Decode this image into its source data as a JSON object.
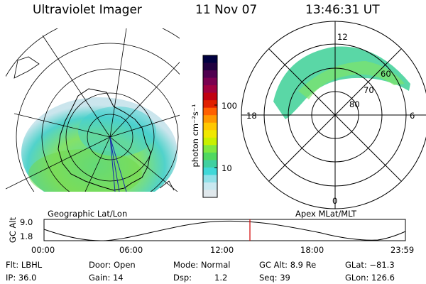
{
  "header": {
    "instrument": "Ultraviolet Imager",
    "date": "11 Nov 07",
    "time": "13:46:31 UT"
  },
  "colorbar": {
    "unit_label": "photon cm⁻²s⁻¹",
    "ticks": [
      "100",
      "10"
    ],
    "colors": [
      "#000040",
      "#200040",
      "#500050",
      "#7a0050",
      "#a00040",
      "#c00010",
      "#e02000",
      "#ff6000",
      "#ff9800",
      "#ffc800",
      "#f0e800",
      "#c8f000",
      "#80e840",
      "#50d860",
      "#40d0a0",
      "#40d8d8",
      "#90e0e8",
      "#c8e8f0",
      "#e0e8ec"
    ]
  },
  "left_map": {
    "caption": "Geographic Lat/Lon"
  },
  "right_map": {
    "caption": "Apex MLat/MLT",
    "mlt_labels": [
      "12",
      "18",
      "6",
      "0"
    ],
    "lat_labels": [
      "60",
      "70",
      "80"
    ]
  },
  "altitude_plot": {
    "ylabel": "GC Alt",
    "y_ticks": [
      "9.0",
      "1.8"
    ],
    "x_ticks": [
      "00:00",
      "06:00",
      "12:00",
      "18:00",
      "23:59"
    ],
    "current_marker_color": "#d00000"
  },
  "info": {
    "filter": "Flt: LBHL",
    "ip": "IP: 36.0",
    "door": "Door: Open",
    "gain": "Gain: 14",
    "mode": "Mode: Normal",
    "dsp_label": "Dsp:",
    "dsp_value": "1.2",
    "gc_alt": "GC Alt: 8.9 Re",
    "seq": "Seq: 39",
    "glat": "GLat: −81.3",
    "glon": "GLon: 126.6"
  }
}
